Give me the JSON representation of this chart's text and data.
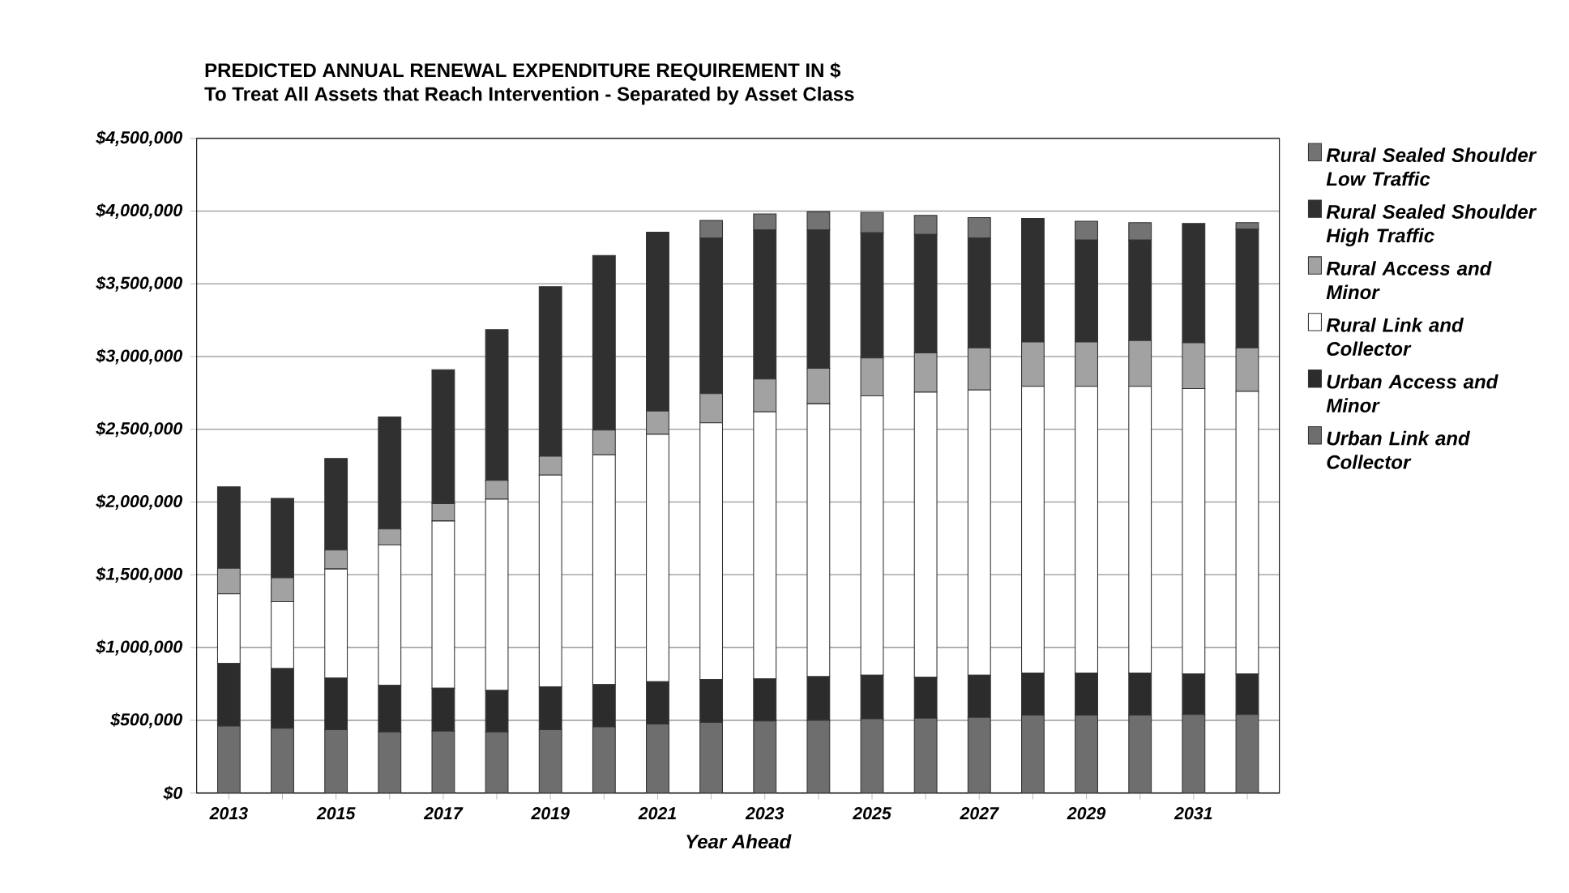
{
  "chart_data": {
    "type": "bar",
    "stacked": true,
    "title": "PREDICTED ANNUAL RENEWAL EXPENDITURE REQUIREMENT IN $",
    "subtitle": "To Treat All Assets that Reach Intervention - Separated by Asset Class",
    "xlabel": "Year Ahead",
    "categories": [
      "2013",
      null,
      "2015",
      null,
      "2017",
      null,
      "2019",
      null,
      "2021",
      null,
      "2023",
      null,
      "2025",
      null,
      "2027",
      null,
      "2029",
      null,
      "2031",
      null
    ],
    "series": [
      {
        "name": "Urban Link and Collector",
        "color": "#6e6e6e",
        "values": [
          460000,
          445000,
          435000,
          420000,
          425000,
          420000,
          435000,
          455000,
          475000,
          485000,
          495000,
          500000,
          510000,
          515000,
          520000,
          535000,
          535000,
          535000,
          540000,
          540000
        ]
      },
      {
        "name": "Urban Access and Minor",
        "color": "#2c2c2c",
        "values": [
          430000,
          410000,
          355000,
          320000,
          295000,
          285000,
          295000,
          290000,
          290000,
          295000,
          290000,
          300000,
          300000,
          280000,
          290000,
          290000,
          290000,
          290000,
          280000,
          280000
        ]
      },
      {
        "name": "Rural Link and Collector",
        "color": "#ffffff",
        "values": [
          480000,
          460000,
          750000,
          965000,
          1150000,
          1315000,
          1455000,
          1580000,
          1700000,
          1765000,
          1835000,
          1875000,
          1920000,
          1960000,
          1960000,
          1970000,
          1970000,
          1970000,
          1960000,
          1940000
        ]
      },
      {
        "name": "Rural Access and Minor",
        "color": "#a2a2a2",
        "values": [
          175000,
          165000,
          130000,
          110000,
          120000,
          130000,
          130000,
          170000,
          160000,
          200000,
          225000,
          245000,
          260000,
          270000,
          290000,
          305000,
          305000,
          315000,
          315000,
          300000
        ]
      },
      {
        "name": "Rural Sealed Shoulder High Traffic",
        "color": "#303030",
        "values": [
          560000,
          545000,
          630000,
          770000,
          920000,
          1035000,
          1165000,
          1200000,
          1230000,
          1070000,
          1025000,
          950000,
          860000,
          815000,
          755000,
          850000,
          700000,
          690000,
          820000,
          815000
        ]
      },
      {
        "name": "Rural Sealed Shoulder Low Traffic",
        "color": "#737373",
        "values": [
          0,
          0,
          0,
          0,
          0,
          0,
          0,
          0,
          0,
          120000,
          110000,
          125000,
          140000,
          130000,
          140000,
          0,
          130000,
          120000,
          0,
          45000
        ]
      }
    ],
    "ylim": [
      0,
      4500000
    ],
    "yticks": [
      {
        "value": 0,
        "label": "$0"
      },
      {
        "value": 500000,
        "label": "$500,000"
      },
      {
        "value": 1000000,
        "label": "$1,000,000"
      },
      {
        "value": 1500000,
        "label": "$1,500,000"
      },
      {
        "value": 2000000,
        "label": "$2,000,000"
      },
      {
        "value": 2500000,
        "label": "$2,500,000"
      },
      {
        "value": 3000000,
        "label": "$3,000,000"
      },
      {
        "value": 3500000,
        "label": "$3,500,000"
      },
      {
        "value": 4000000,
        "label": "$4,000,000"
      },
      {
        "value": 4500000,
        "label": "$4,500,000"
      }
    ],
    "grid": "y",
    "legend": "right"
  }
}
